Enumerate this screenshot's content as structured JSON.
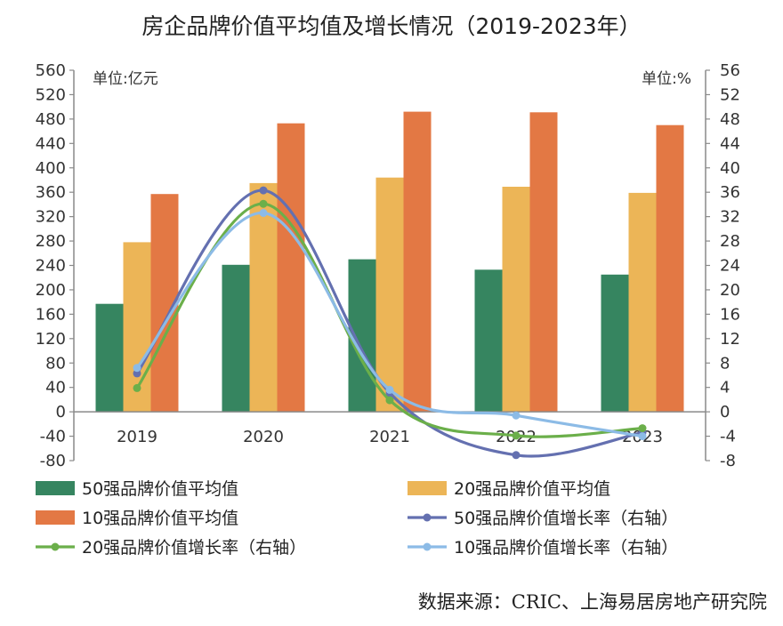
{
  "chart_data": {
    "type": "bar",
    "title": "房企品牌价值平均值及增长情况（2019-2023年）",
    "categories": [
      "2019",
      "2020",
      "2021",
      "2022",
      "2023"
    ],
    "left_axis": {
      "unit_label": "单位:亿元",
      "ylim": [
        -80,
        560
      ],
      "ticks": [
        "560",
        "520",
        "480",
        "440",
        "400",
        "360",
        "320",
        "280",
        "240",
        "200",
        "160",
        "120",
        "80",
        "40",
        "0",
        "-40",
        "-80"
      ]
    },
    "right_axis": {
      "unit_label": "单位:%",
      "ylim": [
        -8,
        56
      ],
      "ticks": [
        "56",
        "52",
        "48",
        "44",
        "40",
        "36",
        "32",
        "28",
        "24",
        "20",
        "16",
        "12",
        "8",
        "4",
        "0",
        "-4",
        "-8"
      ]
    },
    "series": [
      {
        "name": "50强品牌价值平均值",
        "kind": "bar",
        "axis": "left",
        "color": "#368560",
        "values": [
          177,
          241,
          250,
          233,
          225
        ]
      },
      {
        "name": "20强品牌价值平均值",
        "kind": "bar",
        "axis": "left",
        "color": "#ECB557",
        "values": [
          278,
          375,
          384,
          369,
          359
        ]
      },
      {
        "name": "10强品牌价值平均值",
        "kind": "bar",
        "axis": "left",
        "color": "#E37844",
        "values": [
          357,
          473,
          492,
          491,
          470
        ]
      },
      {
        "name": "50强品牌价值增长率（右轴）",
        "kind": "line",
        "axis": "right",
        "color": "#6470B0",
        "values": [
          6.3,
          36.3,
          3.1,
          -7.1,
          -3.4
        ]
      },
      {
        "name": "20强品牌价值增长率（右轴）",
        "kind": "line",
        "axis": "right",
        "color": "#6BAF4A",
        "values": [
          3.9,
          34.1,
          1.9,
          -3.9,
          -2.7
        ]
      },
      {
        "name": "10强品牌价值增长率（右轴）",
        "kind": "line",
        "axis": "right",
        "color": "#8CBBE6",
        "values": [
          7.2,
          32.6,
          3.6,
          -0.6,
          -4.0
        ]
      }
    ],
    "legend_position": "bottom",
    "source": "数据来源：CRIC、上海易居房地产研究院"
  }
}
